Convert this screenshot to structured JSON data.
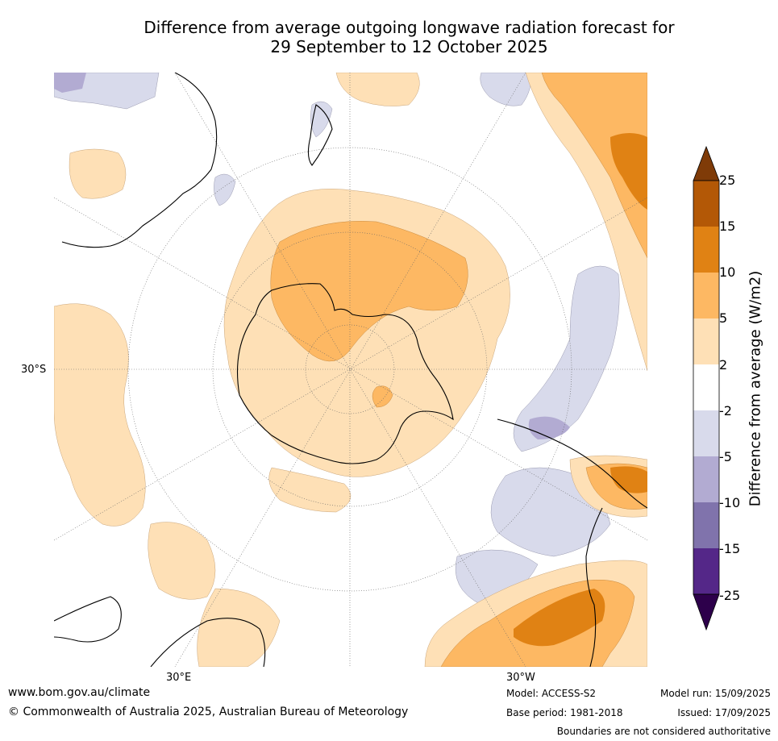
{
  "title": {
    "line1": "Difference from average outgoing longwave radiation forecast for",
    "line2": "29 September to 12 October 2025"
  },
  "map": {
    "projection": "south polar stereographic",
    "labels": {
      "lat_30s": "30°S",
      "lon_30e": "30°E",
      "lon_30w": "30°W"
    }
  },
  "colorbar": {
    "title": "Difference from average (W/m2)",
    "ticks": [
      "25",
      "15",
      "10",
      "5",
      "2",
      "-2",
      "-5",
      "-10",
      "-15",
      "-25"
    ],
    "colors": {
      "over": "#7f3b08",
      "b15_25": "#b35806",
      "b10_15": "#e08214",
      "b5_10": "#fdb863",
      "b2_5": "#fee0b6",
      "bm2_2": "#ffffff",
      "bm5_m2": "#d8daeb",
      "bm10_m5": "#b2abd2",
      "bm15_m10": "#8073ac",
      "bm25_m15": "#542788",
      "under": "#2d004b"
    }
  },
  "footer": {
    "url": "www.bom.gov.au/climate",
    "copyright": "© Commonwealth of Australia 2025, Australian Bureau of Meteorology",
    "model": "Model: ACCESS-S2",
    "base_period": "Base period: 1981-2018",
    "model_run": "Model run: 15/09/2025",
    "issued": "Issued: 17/09/2025",
    "disclaimer": "Boundaries are not considered authoritative"
  }
}
